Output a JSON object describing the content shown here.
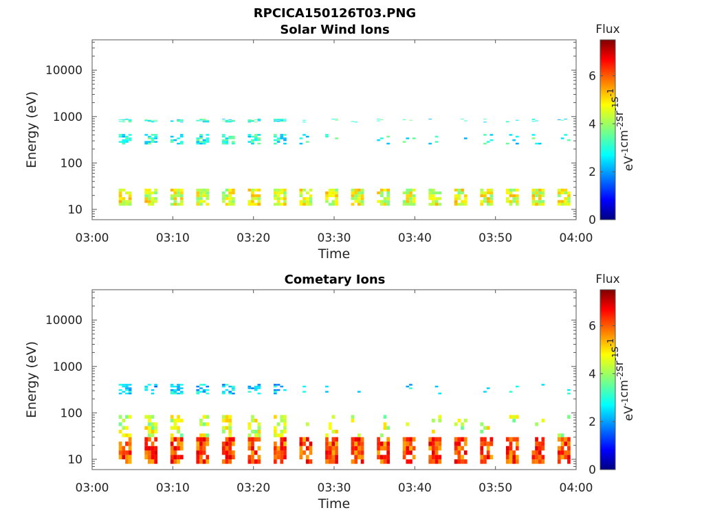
{
  "figure_title": "RPCICA150126T03.PNG",
  "colorbar_colors": [
    "#00007f",
    "#0000ff",
    "#007fff",
    "#00ffff",
    "#7fff7f",
    "#ffff00",
    "#ff7f00",
    "#ff0000",
    "#7f0000"
  ],
  "chart_data": [
    {
      "type": "heatmap",
      "title": "Solar Wind Ions",
      "xlabel": "Time",
      "ylabel": "Energy (eV)",
      "x_ticks": [
        "03:00",
        "03:10",
        "03:20",
        "03:30",
        "03:40",
        "03:50",
        "04:00"
      ],
      "x_range_minutes": [
        0,
        60
      ],
      "y_scale": "log",
      "y_ticks": [
        "10",
        "100",
        "1000",
        "10000"
      ],
      "y_range": [
        6,
        45000
      ],
      "colorbar": {
        "label": "Flux",
        "units_main": "eV",
        "units_sup": [
          "-1",
          "-2",
          "-1",
          "-1"
        ],
        "units_parts": [
          "cm",
          "sr",
          "s"
        ],
        "ticks": [
          "0",
          "2",
          "4",
          "6"
        ],
        "range": [
          0,
          7.5
        ]
      },
      "sweep_start_minutes": [
        3.3,
        6.5,
        9.7,
        12.9,
        16.1,
        19.3,
        22.5,
        25.7,
        28.9,
        32.1,
        35.3,
        38.5,
        41.7,
        44.9,
        48.1,
        51.3,
        54.5,
        57.7
      ],
      "bands": [
        {
          "e_low": 12,
          "e_high": 28,
          "level": 4.5
        },
        {
          "e_low": 250,
          "e_high": 420,
          "level": 3.0
        },
        {
          "e_low": 750,
          "e_high": 900,
          "level": 3.0
        }
      ]
    },
    {
      "type": "heatmap",
      "title": "Cometary Ions",
      "xlabel": "Time",
      "ylabel": "Energy (eV)",
      "x_ticks": [
        "03:00",
        "03:10",
        "03:20",
        "03:30",
        "03:40",
        "03:50",
        "04:00"
      ],
      "x_range_minutes": [
        0,
        60
      ],
      "y_scale": "log",
      "y_ticks": [
        "10",
        "100",
        "1000",
        "10000"
      ],
      "y_range": [
        6,
        45000
      ],
      "colorbar": {
        "label": "Flux",
        "units_main": "eV",
        "units_sup": [
          "-1",
          "-2",
          "-1",
          "-1"
        ],
        "units_parts": [
          "cm",
          "sr",
          "s"
        ],
        "ticks": [
          "0",
          "2",
          "4",
          "6"
        ],
        "range": [
          0,
          7.5
        ]
      },
      "sweep_start_minutes": [
        3.3,
        6.5,
        9.7,
        12.9,
        16.1,
        19.3,
        22.5,
        25.7,
        28.9,
        32.1,
        35.3,
        38.5,
        41.7,
        44.9,
        48.1,
        51.3,
        54.5,
        57.7
      ],
      "bands": [
        {
          "e_low": 8,
          "e_high": 30,
          "level": 6.0
        },
        {
          "e_low": 30,
          "e_high": 90,
          "level": 4.3
        },
        {
          "e_low": 250,
          "e_high": 420,
          "level": 2.5
        }
      ]
    }
  ]
}
